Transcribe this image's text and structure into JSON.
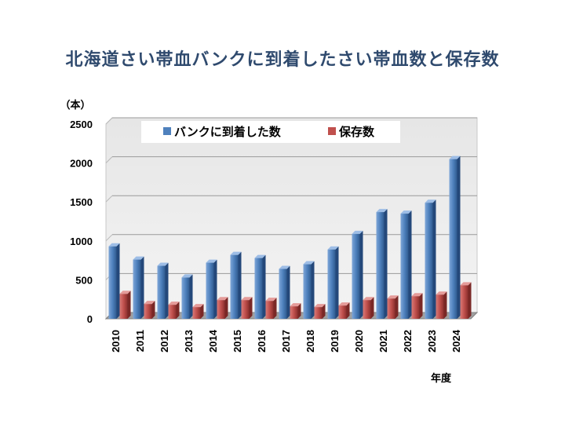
{
  "title": "北海道さい帯血バンクに到着したさい帯血数と保存数",
  "chart_data": {
    "type": "bar",
    "title": "北海道さい帯血バンクに到着したさい帯血数と保存数",
    "ylabel": "（本）",
    "xlabel": "年度",
    "ylim": [
      0,
      2500
    ],
    "yticks": [
      "0",
      "500",
      "1000",
      "1500",
      "2000",
      "2500"
    ],
    "categories": [
      "2010",
      "2011",
      "2012",
      "2013",
      "2014",
      "2015",
      "2016",
      "2017",
      "2018",
      "2019",
      "2020",
      "2021",
      "2022",
      "2023",
      "2024"
    ],
    "series": [
      {
        "name": "バンクに到着した数",
        "color": "#4f81bd",
        "values": [
          930,
          760,
          680,
          530,
          720,
          820,
          780,
          640,
          700,
          890,
          1090,
          1370,
          1350,
          1490,
          2050
        ]
      },
      {
        "name": "保存数",
        "color": "#c0504d",
        "values": [
          320,
          190,
          180,
          150,
          240,
          240,
          230,
          160,
          150,
          170,
          240,
          260,
          290,
          310,
          430
        ]
      }
    ],
    "legend": "top",
    "grid": true
  }
}
